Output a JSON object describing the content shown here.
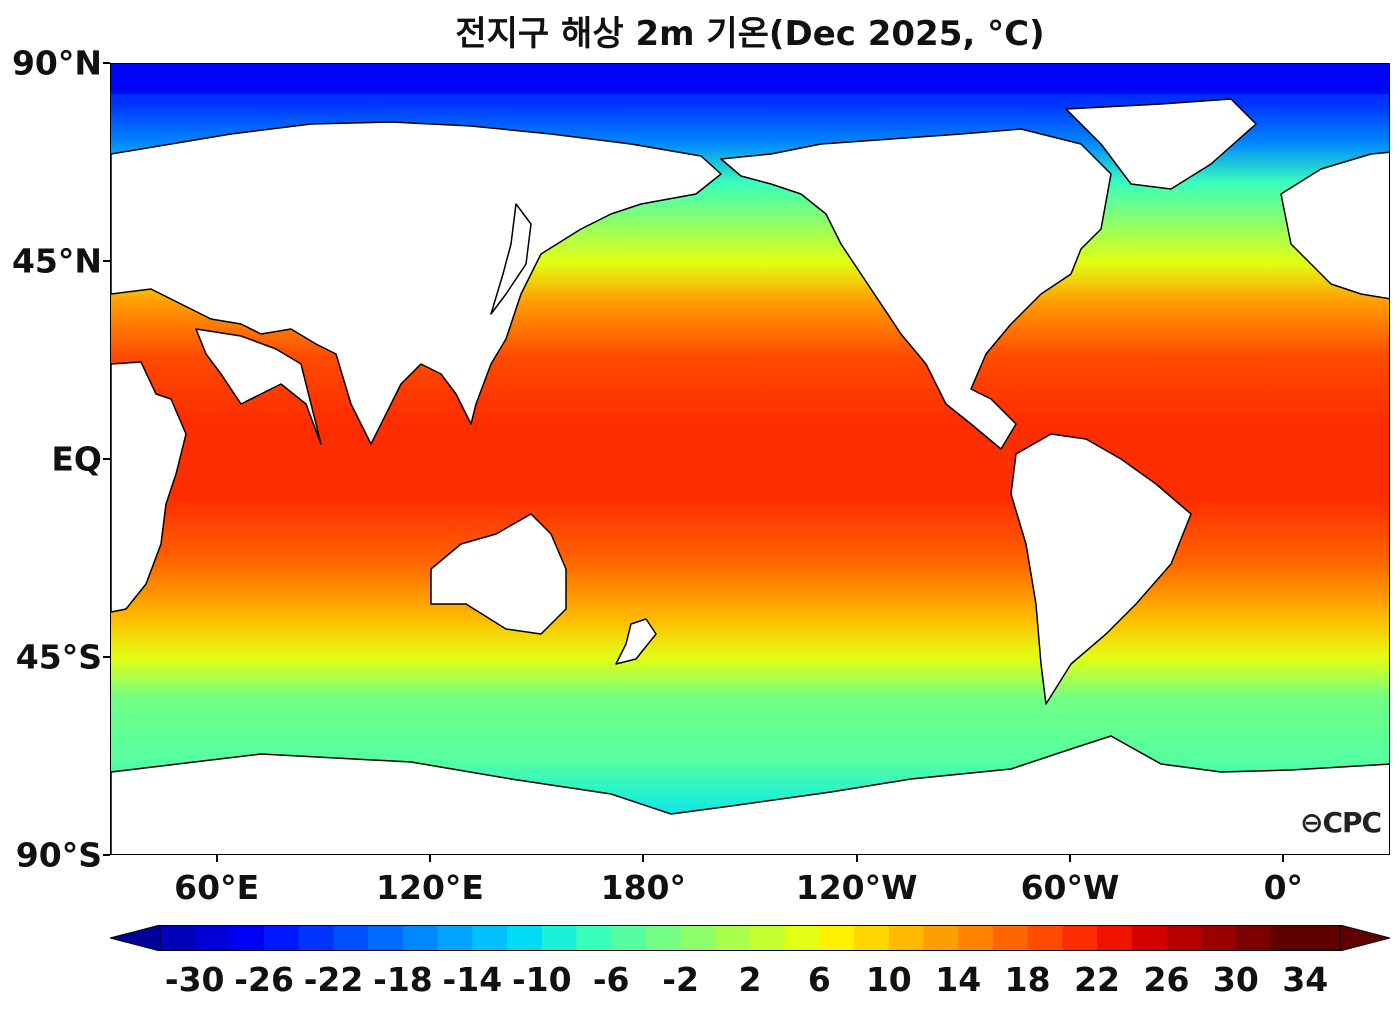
{
  "title": "전지구 해상 2m 기온(Dec 2025, °C)",
  "logo": "CPC",
  "map": {
    "projection": "equirectangular",
    "lon_range": [
      30,
      390
    ],
    "lat_range": [
      -90,
      90
    ],
    "lat_ticks": [
      {
        "lat": 90,
        "label": "90°N"
      },
      {
        "lat": 45,
        "label": "45°N"
      },
      {
        "lat": 0,
        "label": "EQ"
      },
      {
        "lat": -45,
        "label": "45°S"
      },
      {
        "lat": -90,
        "label": "90°S"
      }
    ],
    "lon_ticks": [
      {
        "lon": 60,
        "label": "60°E"
      },
      {
        "lon": 120,
        "label": "120°E"
      },
      {
        "lon": 180,
        "label": "180°"
      },
      {
        "lon": 240,
        "label": "120°W"
      },
      {
        "lon": 300,
        "label": "60°W"
      },
      {
        "lon": 360,
        "label": "0°"
      }
    ],
    "land_color": "#ffffff",
    "coast_color": "#000000"
  },
  "colorbar": {
    "min": -32,
    "max": 36,
    "step": 2,
    "extend": "both",
    "tick_labels": [
      "-30",
      "-26",
      "-22",
      "-18",
      "-14",
      "-10",
      "-6",
      "-2",
      "2",
      "6",
      "10",
      "14",
      "18",
      "22",
      "26",
      "30",
      "34"
    ],
    "colors": [
      "#000099",
      "#0000b8",
      "#0000d6",
      "#0000f5",
      "#0018ff",
      "#0034ff",
      "#0050ff",
      "#006cff",
      "#0088ff",
      "#00a4ff",
      "#00c0ff",
      "#00dcf4",
      "#1cf0d8",
      "#38ffbc",
      "#55ffa0",
      "#72ff84",
      "#8eff68",
      "#aaff4c",
      "#c6ff30",
      "#e2ff14",
      "#fff200",
      "#ffd600",
      "#ffba00",
      "#ff9e00",
      "#ff8200",
      "#ff6600",
      "#ff4a00",
      "#ff2e00",
      "#f21200",
      "#d40000",
      "#b80000",
      "#9a0000",
      "#7d0000",
      "#600000"
    ]
  },
  "chart_data": {
    "type": "heatmap",
    "variable": "2m air temperature over ocean",
    "units": "°C",
    "zonal_profile_lat": [
      -75,
      -65,
      -55,
      -45,
      -35,
      -25,
      -15,
      0,
      15,
      25,
      35,
      45,
      55,
      65,
      75,
      85
    ],
    "zonal_profile_temp": [
      -4,
      -1,
      3,
      9,
      17,
      22,
      26,
      27,
      26,
      23,
      16,
      11,
      6,
      2,
      -12,
      -26
    ]
  }
}
